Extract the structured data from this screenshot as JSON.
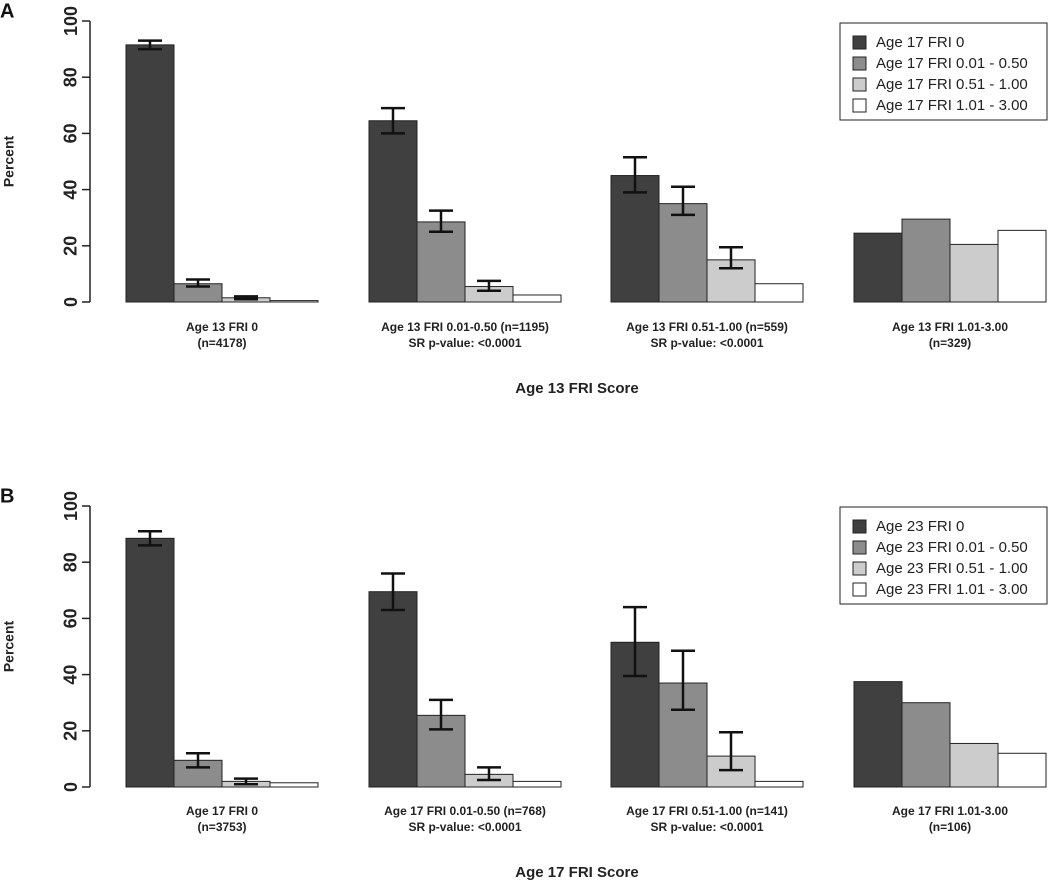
{
  "chart_data": [
    {
      "type": "bar",
      "panel_label": "A",
      "ylabel": "Percent",
      "xlabel": "Age 13 FRI Score",
      "ylim": [
        0,
        100
      ],
      "yticks": [
        "0",
        "20",
        "40",
        "60",
        "80",
        "100"
      ],
      "groups": [
        {
          "line1": "Age 13 FRI 0",
          "line2": "(n=4178)"
        },
        {
          "line1": "Age 13 FRI 0.01-0.50 (n=1195)",
          "line2": "SR p-value: <0.0001"
        },
        {
          "line1": "Age 13 FRI 0.51-1.00 (n=559)",
          "line2": "SR p-value: <0.0001"
        },
        {
          "line1": "Age 13 FRI 1.01-3.00",
          "line2": "(n=329)"
        }
      ],
      "series": [
        {
          "name": "Age 17 FRI 0",
          "color": "#404040",
          "values": [
            91.5,
            64.5,
            45,
            24.5
          ],
          "err_low": [
            90,
            60,
            39,
            null
          ],
          "err_high": [
            93,
            69,
            51.5,
            null
          ]
        },
        {
          "name": "Age 17 FRI 0.01 - 0.50",
          "color": "#8c8c8c",
          "values": [
            6.5,
            28.5,
            35,
            29.5
          ],
          "err_low": [
            5.5,
            25,
            31,
            null
          ],
          "err_high": [
            8,
            32.5,
            41,
            null
          ]
        },
        {
          "name": "Age 17 FRI 0.51 - 1.00",
          "color": "#cccccc",
          "values": [
            1.5,
            5.5,
            15,
            20.5
          ],
          "err_low": [
            1,
            4,
            12,
            null
          ],
          "err_high": [
            2,
            7.5,
            19.5,
            null
          ]
        },
        {
          "name": "Age 17 FRI 1.01 - 3.00",
          "color": "#ffffff",
          "values": [
            0.5,
            2.5,
            6.5,
            25.5
          ],
          "err_low": [
            null,
            null,
            null,
            null
          ],
          "err_high": [
            null,
            null,
            null,
            null
          ]
        }
      ]
    },
    {
      "type": "bar",
      "panel_label": "B",
      "ylabel": "Percent",
      "xlabel": "Age 17 FRI Score",
      "ylim": [
        0,
        100
      ],
      "yticks": [
        "0",
        "20",
        "40",
        "60",
        "80",
        "100"
      ],
      "groups": [
        {
          "line1": "Age 17 FRI 0",
          "line2": "(n=3753)"
        },
        {
          "line1": "Age 17 FRI 0.01-0.50 (n=768)",
          "line2": "SR p-value: <0.0001"
        },
        {
          "line1": "Age 17 FRI 0.51-1.00 (n=141)",
          "line2": "SR p-value: <0.0001"
        },
        {
          "line1": "Age 17 FRI 1.01-3.00",
          "line2": "(n=106)"
        }
      ],
      "series": [
        {
          "name": "Age 23 FRI 0",
          "color": "#404040",
          "values": [
            88.5,
            69.5,
            51.5,
            37.5
          ],
          "err_low": [
            86,
            63,
            39.5,
            null
          ],
          "err_high": [
            91,
            76,
            64,
            null
          ]
        },
        {
          "name": "Age 23 FRI 0.01 - 0.50",
          "color": "#8c8c8c",
          "values": [
            9.5,
            25.5,
            37,
            30
          ],
          "err_low": [
            7,
            20.5,
            27.5,
            null
          ],
          "err_high": [
            12,
            31,
            48.5,
            null
          ]
        },
        {
          "name": "Age 23 FRI 0.51 - 1.00",
          "color": "#cccccc",
          "values": [
            2,
            4.5,
            11,
            15.5
          ],
          "err_low": [
            1,
            2.5,
            6,
            null
          ],
          "err_high": [
            3,
            7,
            19.5,
            null
          ]
        },
        {
          "name": "Age 23 FRI 1.01 - 3.00",
          "color": "#ffffff",
          "values": [
            1.5,
            2,
            2,
            12
          ],
          "err_low": [
            null,
            null,
            null,
            null
          ],
          "err_high": [
            null,
            null,
            null,
            null
          ]
        }
      ]
    }
  ]
}
